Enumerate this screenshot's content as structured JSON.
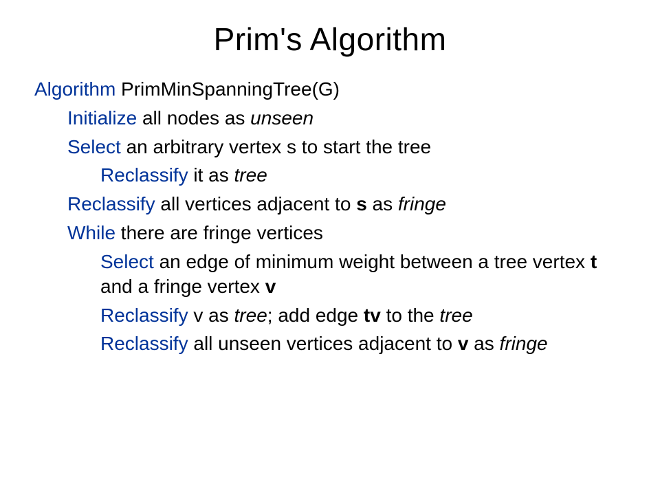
{
  "title": "Prim's Algorithm",
  "colors": {
    "keyword": "#003399",
    "text": "#000000",
    "background": "#ffffff"
  },
  "typography": {
    "title_fontsize": 46,
    "body_fontsize": 28,
    "font_family": "Arial"
  },
  "lines": [
    {
      "indent": 0,
      "segments": [
        {
          "text": "Algorithm",
          "kw": true
        },
        {
          "text": " PrimMinSpanningTree(G)"
        }
      ]
    },
    {
      "indent": 1,
      "segments": [
        {
          "text": "Initialize",
          "kw": true
        },
        {
          "text": " all nodes as "
        },
        {
          "text": "unseen",
          "it": true
        }
      ]
    },
    {
      "indent": 1,
      "segments": [
        {
          "text": "Select",
          "kw": true
        },
        {
          "text": " an arbitrary vertex s to start the tree"
        }
      ]
    },
    {
      "indent": 2,
      "segments": [
        {
          "text": "Reclassify",
          "kw": true
        },
        {
          "text": " it as "
        },
        {
          "text": "tree",
          "it": true
        }
      ]
    },
    {
      "indent": 1,
      "segments": [
        {
          "text": "Reclassify",
          "kw": true
        },
        {
          "text": " all vertices adjacent to "
        },
        {
          "text": "s",
          "bd": true
        },
        {
          "text": " as "
        },
        {
          "text": "fringe",
          "it": true
        }
      ]
    },
    {
      "indent": 1,
      "segments": [
        {
          "text": "While",
          "kw": true
        },
        {
          "text": " there are fringe vertices"
        }
      ]
    },
    {
      "indent": 2,
      "segments": [
        {
          "text": "Select",
          "kw": true
        },
        {
          "text": " an edge of minimum weight between a tree vertex "
        },
        {
          "text": "t",
          "bd": true
        },
        {
          "text": " and a fringe vertex "
        },
        {
          "text": "v",
          "bd": true
        }
      ]
    },
    {
      "indent": 2,
      "segments": [
        {
          "text": "Reclassify",
          "kw": true
        },
        {
          "text": " v as "
        },
        {
          "text": "tree",
          "it": true
        },
        {
          "text": "; add edge "
        },
        {
          "text": "tv",
          "bd": true
        },
        {
          "text": " to the "
        },
        {
          "text": "tree",
          "it": true
        }
      ]
    },
    {
      "indent": 2,
      "segments": [
        {
          "text": "Reclassify",
          "kw": true
        },
        {
          "text": " all unseen vertices adjacent to "
        },
        {
          "text": "v",
          "bd": true
        },
        {
          "text": " as "
        },
        {
          "text": "fringe",
          "it": true
        }
      ]
    }
  ]
}
